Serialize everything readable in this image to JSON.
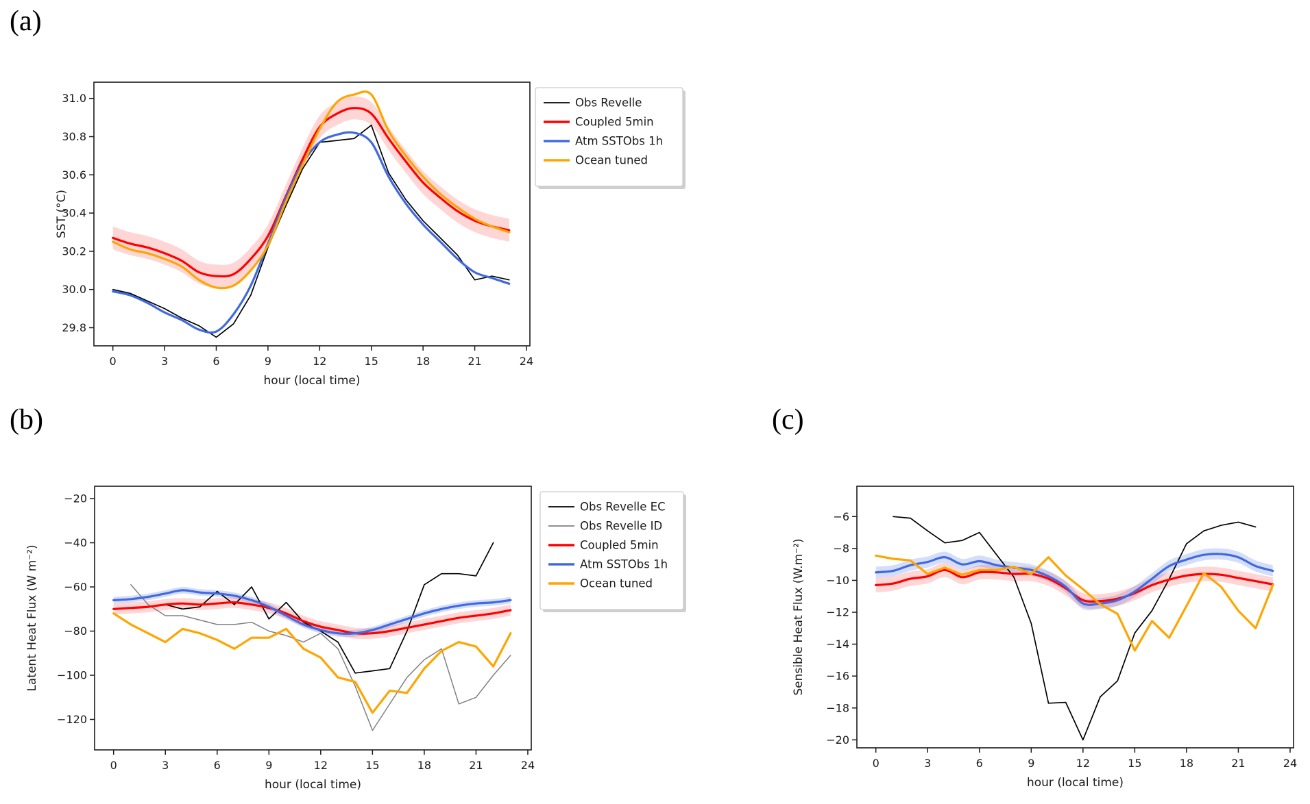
{
  "figure": {
    "background": "#ffffff"
  },
  "chart_data": [
    {
      "type": "line",
      "panel_label": "(a)",
      "xlabel": "hour (local time)",
      "ylabel": "SST (°C)",
      "xlim": [
        -1.1,
        24.2
      ],
      "ylim": [
        29.705,
        31.085
      ],
      "xticks": [
        0,
        3,
        6,
        9,
        12,
        15,
        18,
        21,
        24
      ],
      "yticks": [
        29.8,
        30.0,
        30.2,
        30.4,
        30.6,
        30.8,
        31.0
      ],
      "ytick_labels": [
        "29.8",
        "30.0",
        "30.2",
        "30.4",
        "30.6",
        "30.8",
        "31.0"
      ],
      "grid": false,
      "legend": {
        "visible": true,
        "position": "outside-right",
        "entries": [
          {
            "label": "Obs Revelle",
            "color": "#000000",
            "lw": 1.8
          },
          {
            "label": "Coupled 5min",
            "color": "#ff0000",
            "lw": 3.4
          },
          {
            "label": "Atm SSTObs 1h",
            "color": "#4169e1",
            "lw": 3.4
          },
          {
            "label": "Ocean tuned",
            "color": "#ffa500",
            "lw": 3.4
          }
        ]
      },
      "series": [
        {
          "name": "Obs Revelle",
          "color": "#000000",
          "lw": 1.7,
          "smooth": false,
          "x": [
            0,
            1,
            2,
            3,
            4,
            5,
            6,
            7,
            8,
            9,
            10,
            11,
            12,
            13,
            14,
            15,
            16,
            17,
            18,
            19,
            20,
            21,
            22,
            23
          ],
          "y": [
            30.0,
            29.98,
            29.94,
            29.9,
            29.85,
            29.81,
            29.75,
            29.82,
            29.97,
            30.22,
            30.43,
            30.63,
            30.77,
            30.78,
            30.79,
            30.86,
            30.61,
            30.47,
            30.36,
            30.27,
            30.18,
            30.05,
            30.07,
            30.05
          ]
        },
        {
          "name": "Coupled 5min",
          "color": "#ff0000",
          "lw": 3.2,
          "smooth": true,
          "band": 0.06,
          "band_color": "rgba(255,0,0,0.16)",
          "x": [
            0,
            1,
            2,
            3,
            4,
            5,
            6,
            7,
            8,
            9,
            10,
            11,
            12,
            13,
            14,
            15,
            16,
            17,
            18,
            19,
            20,
            21,
            22,
            23
          ],
          "y": [
            30.27,
            30.24,
            30.22,
            30.19,
            30.15,
            30.09,
            30.07,
            30.08,
            30.16,
            30.28,
            30.48,
            30.68,
            30.85,
            30.92,
            30.95,
            30.92,
            30.79,
            30.67,
            30.56,
            30.48,
            30.41,
            30.36,
            30.33,
            30.31
          ]
        },
        {
          "name": "Atm SSTObs 1h",
          "color": "#4169e1",
          "lw": 3.2,
          "smooth": true,
          "x": [
            0,
            1,
            2,
            3,
            4,
            5,
            6,
            7,
            8,
            9,
            10,
            11,
            12,
            13,
            14,
            15,
            16,
            17,
            18,
            19,
            20,
            21,
            22,
            23
          ],
          "y": [
            29.99,
            29.97,
            29.93,
            29.88,
            29.84,
            29.79,
            29.78,
            29.87,
            30.02,
            30.24,
            30.47,
            30.66,
            30.77,
            30.81,
            30.82,
            30.77,
            30.59,
            30.45,
            30.34,
            30.25,
            30.16,
            30.09,
            30.06,
            30.03
          ]
        },
        {
          "name": "Ocean tuned",
          "color": "#ffa500",
          "lw": 3.2,
          "smooth": true,
          "x": [
            0,
            1,
            2,
            3,
            4,
            5,
            6,
            7,
            8,
            9,
            10,
            11,
            12,
            13,
            14,
            15,
            16,
            17,
            18,
            19,
            20,
            21,
            22,
            23
          ],
          "y": [
            30.25,
            30.21,
            30.19,
            30.16,
            30.12,
            30.05,
            30.01,
            30.02,
            30.1,
            30.23,
            30.45,
            30.65,
            30.84,
            30.98,
            31.02,
            31.02,
            30.83,
            30.7,
            30.59,
            30.5,
            30.43,
            30.37,
            30.33,
            30.3
          ]
        }
      ]
    },
    {
      "type": "line",
      "panel_label": "(b)",
      "xlabel": "hour (local time)",
      "ylabel": "Latent Heat Flux (W m⁻²)",
      "xlim": [
        -1.1,
        24.2
      ],
      "ylim": [
        -133.8,
        -14.4
      ],
      "xticks": [
        0,
        3,
        6,
        9,
        12,
        15,
        18,
        21,
        24
      ],
      "yticks": [
        -120,
        -100,
        -80,
        -60,
        -40,
        -20
      ],
      "ytick_labels": [
        "−120",
        "−100",
        "−80",
        "−60",
        "−40",
        "−20"
      ],
      "grid": false,
      "legend": {
        "visible": true,
        "position": "outside-right",
        "entries": [
          {
            "label": "Obs Revelle EC",
            "color": "#000000",
            "lw": 1.8
          },
          {
            "label": "Obs Revelle ID",
            "color": "#808080",
            "lw": 1.8
          },
          {
            "label": "Coupled 5min",
            "color": "#ff0000",
            "lw": 3.4
          },
          {
            "label": "Atm SSTObs 1h",
            "color": "#4169e1",
            "lw": 3.4
          },
          {
            "label": "Ocean tuned",
            "color": "#ffa500",
            "lw": 3.4
          }
        ]
      },
      "series": [
        {
          "name": "Obs Revelle EC",
          "color": "#000000",
          "lw": 1.7,
          "smooth": false,
          "x": [
            3,
            4,
            5,
            6,
            7,
            8,
            9,
            10,
            11,
            12,
            13,
            14,
            15,
            16,
            17,
            18,
            19,
            20,
            21,
            22
          ],
          "y": [
            -68,
            -70,
            -69,
            -62,
            -68,
            -60,
            -74.5,
            -67,
            -76,
            -80,
            -85,
            -99,
            -98,
            -97,
            -80,
            -59,
            -54,
            -54,
            -55,
            -40
          ]
        },
        {
          "name": "Obs Revelle ID",
          "color": "#808080",
          "lw": 1.5,
          "smooth": false,
          "x": [
            1,
            2,
            3,
            4,
            5,
            6,
            7,
            8,
            9,
            10,
            11,
            12,
            13,
            14,
            15,
            16,
            17,
            18,
            19,
            20,
            21,
            22,
            23
          ],
          "y": [
            -59,
            -68,
            -73,
            -73,
            -75,
            -77,
            -77,
            -76,
            -80,
            -82,
            -85,
            -81,
            -88,
            -105,
            -125,
            -113,
            -101,
            -93,
            -88,
            -113,
            -110,
            -100,
            -91
          ]
        },
        {
          "name": "Coupled 5min",
          "color": "#ff0000",
          "lw": 3.2,
          "smooth": true,
          "band": 2.5,
          "band_color": "rgba(255,0,0,0.16)",
          "x": [
            0,
            1,
            2,
            3,
            4,
            5,
            6,
            7,
            8,
            9,
            10,
            11,
            12,
            13,
            14,
            15,
            16,
            17,
            18,
            19,
            20,
            21,
            22,
            23
          ],
          "y": [
            -70,
            -69.5,
            -69,
            -68,
            -67.5,
            -68,
            -67.5,
            -67,
            -68,
            -69.5,
            -72,
            -75.5,
            -78,
            -79.5,
            -81,
            -81,
            -80,
            -78.5,
            -77,
            -75.5,
            -74,
            -73,
            -72,
            -70.5
          ]
        },
        {
          "name": "Atm SSTObs 1h",
          "color": "#4169e1",
          "lw": 3.2,
          "smooth": true,
          "band": 1.5,
          "band_color": "rgba(65,105,225,0.22)",
          "x": [
            0,
            1,
            2,
            3,
            4,
            5,
            6,
            7,
            8,
            9,
            10,
            11,
            12,
            13,
            14,
            15,
            16,
            17,
            18,
            19,
            20,
            21,
            22,
            23
          ],
          "y": [
            -66,
            -65.5,
            -64.5,
            -63,
            -61.5,
            -62.5,
            -63,
            -64,
            -66,
            -69,
            -73,
            -77,
            -79.5,
            -81,
            -81,
            -79.5,
            -77,
            -74.5,
            -72,
            -70,
            -68.5,
            -67.5,
            -67,
            -66
          ]
        },
        {
          "name": "Ocean tuned",
          "color": "#ffa500",
          "lw": 3.2,
          "smooth": false,
          "x": [
            0,
            1,
            2,
            3,
            4,
            5,
            6,
            7,
            8,
            9,
            10,
            11,
            12,
            13,
            14,
            15,
            16,
            17,
            18,
            19,
            20,
            21,
            22,
            23
          ],
          "y": [
            -72,
            -77,
            -81,
            -85,
            -79,
            -81,
            -84,
            -88,
            -83,
            -83,
            -79,
            -88,
            -92,
            -101,
            -103,
            -117,
            -107,
            -108,
            -97,
            -89,
            -85,
            -87,
            -96,
            -81
          ]
        }
      ]
    },
    {
      "type": "line",
      "panel_label": "(c)",
      "xlabel": "hour (local time)",
      "ylabel": "Sensible Heat Flux (W.m⁻²)",
      "xlim": [
        -1.1,
        24.2
      ],
      "ylim": [
        -20.5,
        -4.1
      ],
      "xticks": [
        0,
        3,
        6,
        9,
        12,
        15,
        18,
        21,
        24
      ],
      "yticks": [
        -20,
        -18,
        -16,
        -14,
        -12,
        -10,
        -8,
        -6
      ],
      "ytick_labels": [
        "−20",
        "−18",
        "−16",
        "−14",
        "−12",
        "−10",
        "−8",
        "−6"
      ],
      "grid": false,
      "legend": {
        "visible": false,
        "entries": []
      },
      "series": [
        {
          "name": "Obs Revelle",
          "color": "#000000",
          "lw": 1.7,
          "smooth": false,
          "x": [
            1,
            2,
            3,
            4,
            5,
            6,
            7,
            8,
            9,
            10,
            11,
            12,
            13,
            14,
            15,
            16,
            17,
            18,
            19,
            20,
            21,
            22
          ],
          "y": [
            -6.0,
            -6.1,
            -6.9,
            -7.65,
            -7.5,
            -7.0,
            -8.4,
            -9.8,
            -12.7,
            -17.7,
            -17.65,
            -20.0,
            -17.3,
            -16.3,
            -13.3,
            -11.9,
            -9.9,
            -7.7,
            -6.9,
            -6.55,
            -6.35,
            -6.65
          ]
        },
        {
          "name": "Coupled 5min",
          "color": "#ff0000",
          "lw": 3.2,
          "smooth": true,
          "band": 0.45,
          "band_color": "rgba(255,0,0,0.16)",
          "x": [
            0,
            1,
            2,
            3,
            4,
            5,
            6,
            7,
            8,
            9,
            10,
            11,
            12,
            13,
            14,
            15,
            16,
            17,
            18,
            19,
            20,
            21,
            22,
            23
          ],
          "y": [
            -10.3,
            -10.2,
            -9.9,
            -9.75,
            -9.35,
            -9.8,
            -9.5,
            -9.5,
            -9.6,
            -9.6,
            -9.9,
            -10.5,
            -11.25,
            -11.3,
            -11.15,
            -10.8,
            -10.3,
            -9.95,
            -9.7,
            -9.6,
            -9.65,
            -9.85,
            -10.05,
            -10.25
          ]
        },
        {
          "name": "Atm SSTObs 1h",
          "color": "#4169e1",
          "lw": 3.2,
          "smooth": true,
          "band": 0.35,
          "band_color": "rgba(65,105,225,0.22)",
          "x": [
            0,
            1,
            2,
            3,
            4,
            5,
            6,
            7,
            8,
            9,
            10,
            11,
            12,
            13,
            14,
            15,
            16,
            17,
            18,
            19,
            20,
            21,
            22,
            23
          ],
          "y": [
            -9.5,
            -9.4,
            -9.05,
            -8.85,
            -8.55,
            -9.0,
            -8.8,
            -9.05,
            -9.2,
            -9.35,
            -9.75,
            -10.4,
            -11.45,
            -11.45,
            -11.25,
            -10.7,
            -9.9,
            -9.1,
            -8.7,
            -8.4,
            -8.35,
            -8.55,
            -9.1,
            -9.4
          ]
        },
        {
          "name": "Ocean tuned",
          "color": "#ffa500",
          "lw": 3.2,
          "smooth": false,
          "x": [
            0,
            1,
            2,
            3,
            4,
            5,
            6,
            7,
            8,
            9,
            10,
            11,
            12,
            13,
            14,
            15,
            16,
            17,
            18,
            19,
            20,
            21,
            22,
            23
          ],
          "y": [
            -8.45,
            -8.65,
            -8.75,
            -9.6,
            -9.2,
            -9.65,
            -9.35,
            -9.35,
            -9.15,
            -9.6,
            -8.55,
            -9.7,
            -10.55,
            -11.5,
            -12.1,
            -14.4,
            -12.55,
            -13.6,
            -11.6,
            -9.55,
            -10.4,
            -11.9,
            -13.0,
            -10.3
          ]
        }
      ]
    }
  ]
}
